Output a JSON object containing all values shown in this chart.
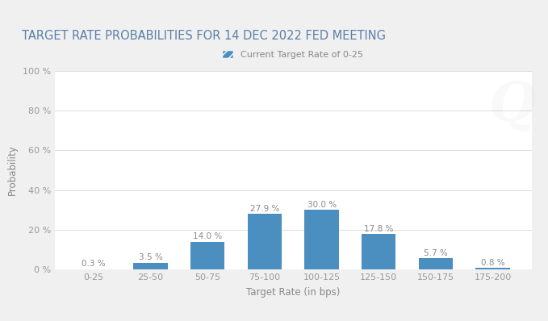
{
  "title": "TARGET RATE PROBABILITIES FOR 14 DEC 2022 FED MEETING",
  "categories": [
    "0-25",
    "25-50",
    "50-75",
    "75-100",
    "100-125",
    "125-150",
    "150-175",
    "175-200"
  ],
  "values": [
    0.3,
    3.5,
    14.0,
    27.9,
    30.0,
    17.8,
    5.7,
    0.8
  ],
  "bar_color": "#4a8fc0",
  "xlabel": "Target Rate (in bps)",
  "ylabel": "Probability",
  "ylim": [
    0,
    100
  ],
  "yticks": [
    0,
    20,
    40,
    60,
    80,
    100
  ],
  "ytick_labels": [
    "0 %",
    "20 %",
    "40 %",
    "60 %",
    "80 %",
    "100 %"
  ],
  "legend_label": "Current Target Rate of 0-25",
  "legend_marker_color": "#4a8fc0",
  "background_color": "#f0f0f0",
  "plot_bg_color": "#ffffff",
  "title_fontsize": 10.5,
  "label_fontsize": 8.5,
  "tick_fontsize": 8,
  "value_label_fontsize": 7.5,
  "watermark_text": "Q",
  "watermark_alpha": 0.07,
  "title_color": "#5a7fa8",
  "tick_color": "#999999",
  "label_color": "#888888",
  "grid_color": "#dddddd"
}
